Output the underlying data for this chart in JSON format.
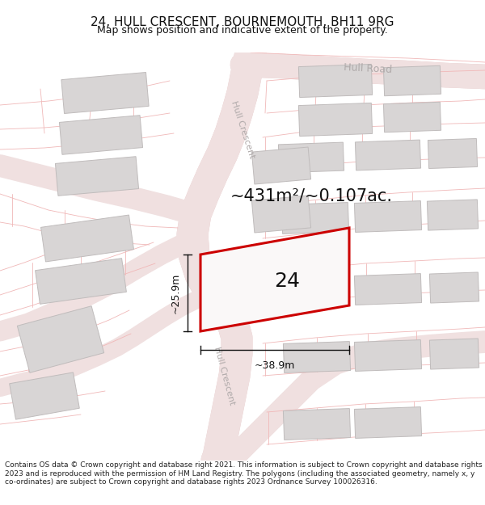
{
  "title": "24, HULL CRESCENT, BOURNEMOUTH, BH11 9RG",
  "subtitle": "Map shows position and indicative extent of the property.",
  "footer": "Contains OS data © Crown copyright and database right 2021. This information is subject to Crown copyright and database rights 2023 and is reproduced with the permission of HM Land Registry. The polygons (including the associated geometry, namely x, y co-ordinates) are subject to Crown copyright and database rights 2023 Ordnance Survey 100026316.",
  "area_label": "~431m²/~0.107ac.",
  "width_label": "~38.9m",
  "height_label": "~25.9m",
  "plot_number": "24",
  "map_bg": "#f7f3f3",
  "road_fill": "#f0e0e0",
  "road_line": "#e8c8c8",
  "building_fill": "#d8d5d5",
  "building_edge": "#c0bcbc",
  "plot_fill": "#faf8f8",
  "plot_edge": "#cc0000",
  "road_label_color": "#b0aaaa",
  "boundary_color": "#f0b8b8",
  "dim_color": "#111111",
  "title_fontsize": 11,
  "subtitle_fontsize": 9,
  "footer_fontsize": 6.5,
  "area_fontsize": 15,
  "plot_num_fontsize": 18,
  "dim_fontsize": 9,
  "road_label_fontsize": 9
}
